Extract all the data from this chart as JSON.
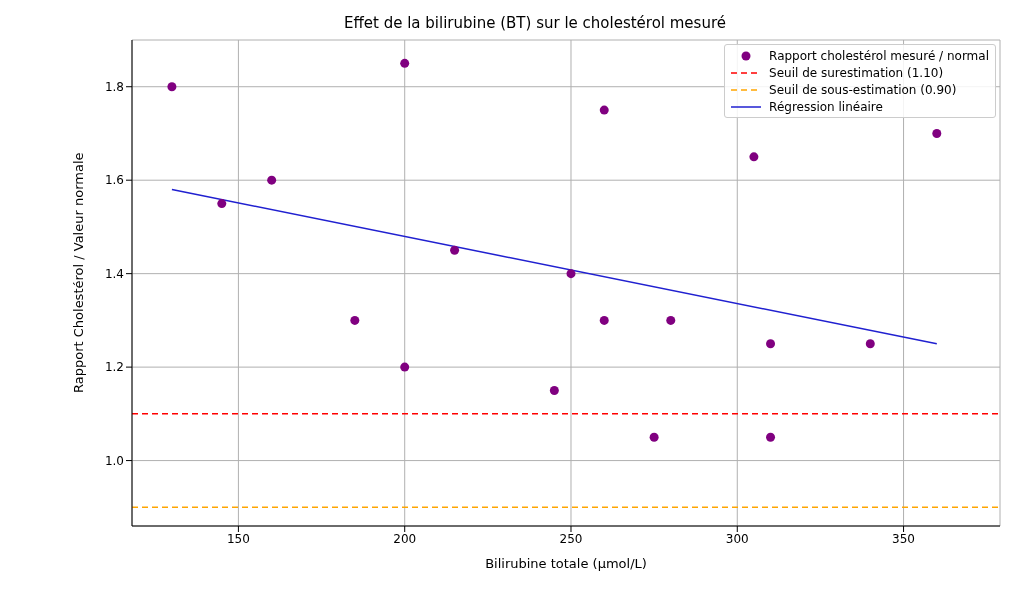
{
  "chart_data": {
    "type": "scatter",
    "title": "Effet de la bilirubine (BT) sur le cholestérol mesuré",
    "xlabel": "Bilirubine totale (µmol/L)",
    "ylabel": "Rapport Cholestérol / Valeur normale",
    "series": [
      {
        "name": "Rapport cholestérol mesuré / normal",
        "marker": "circle",
        "color": "#800080",
        "x": [
          130,
          145,
          160,
          185,
          200,
          200,
          215,
          245,
          250,
          260,
          260,
          275,
          280,
          305,
          310,
          310,
          340,
          360
        ],
        "values": [
          1.8,
          1.55,
          1.6,
          1.3,
          1.85,
          1.2,
          1.45,
          1.15,
          1.4,
          1.75,
          1.3,
          1.05,
          1.3,
          1.65,
          1.25,
          1.05,
          1.25,
          1.7
        ]
      },
      {
        "type": "line",
        "name": "Régression linéaire",
        "marker": "none",
        "color": "#2020d0",
        "x": [
          130,
          360
        ],
        "values": [
          1.58,
          1.25
        ]
      }
    ],
    "ref_lines": [
      {
        "axis": "y",
        "value": 1.1,
        "label": "Seuil de surestimation (1.10)",
        "color": "#ff0000",
        "line_style": "dashed"
      },
      {
        "axis": "y",
        "value": 0.9,
        "label": "Seuil de sous-estimation (0.90)",
        "color": "#ffa500",
        "line_style": "dashed"
      }
    ],
    "xlim": [
      118,
      379
    ],
    "ylim": [
      0.86,
      1.9
    ],
    "xticks": [
      150,
      200,
      250,
      300,
      350
    ],
    "yticks": [
      {
        "value": 1.0,
        "label": "1.0"
      },
      1.2,
      1.4,
      1.6,
      1.8
    ],
    "grid": true,
    "legend": "top right",
    "line_style": "solid"
  }
}
